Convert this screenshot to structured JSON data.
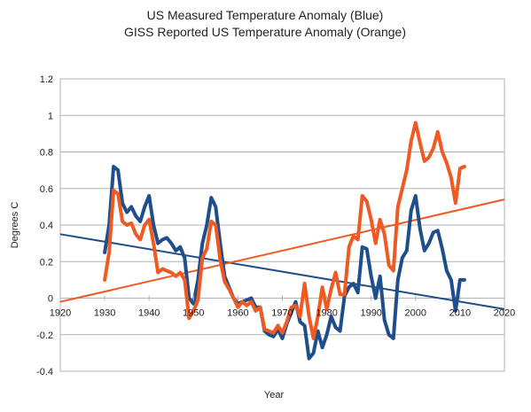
{
  "chart_data": {
    "type": "line",
    "title_lines": [
      "US Measured Temperature Anomaly (Blue)",
      "GISS Reported US Temperature Anomaly (Orange)"
    ],
    "xlabel": "Year",
    "ylabel": "Degrees C",
    "xlim": [
      1920,
      2020
    ],
    "ylim": [
      -0.4,
      1.2
    ],
    "x_ticks": [
      1920,
      1930,
      1940,
      1950,
      1960,
      1970,
      1980,
      1990,
      2000,
      2010,
      2020
    ],
    "y_ticks": [
      -0.4,
      -0.2,
      0,
      0.2,
      0.4,
      0.6,
      0.8,
      1,
      1.2
    ],
    "grid": "horizontal",
    "series": [
      {
        "color": "#1f4e8c",
        "points": [
          [
            1930,
            0.25
          ],
          [
            1931,
            0.4
          ],
          [
            1932,
            0.72
          ],
          [
            1933,
            0.7
          ],
          [
            1934,
            0.52
          ],
          [
            1935,
            0.47
          ],
          [
            1936,
            0.5
          ],
          [
            1937,
            0.45
          ],
          [
            1938,
            0.42
          ],
          [
            1939,
            0.5
          ],
          [
            1940,
            0.56
          ],
          [
            1941,
            0.4
          ],
          [
            1942,
            0.3
          ],
          [
            1943,
            0.32
          ],
          [
            1944,
            0.33
          ],
          [
            1945,
            0.3
          ],
          [
            1946,
            0.26
          ],
          [
            1947,
            0.28
          ],
          [
            1948,
            0.22
          ],
          [
            1949,
            0.0
          ],
          [
            1950,
            -0.03
          ],
          [
            1951,
            0.1
          ],
          [
            1952,
            0.3
          ],
          [
            1953,
            0.4
          ],
          [
            1954,
            0.55
          ],
          [
            1955,
            0.5
          ],
          [
            1956,
            0.3
          ],
          [
            1957,
            0.12
          ],
          [
            1958,
            0.06
          ],
          [
            1959,
            0.0
          ],
          [
            1960,
            -0.03
          ],
          [
            1961,
            -0.02
          ],
          [
            1962,
            -0.01
          ],
          [
            1963,
            0.0
          ],
          [
            1964,
            -0.05
          ],
          [
            1965,
            -0.05
          ],
          [
            1966,
            -0.18
          ],
          [
            1967,
            -0.2
          ],
          [
            1968,
            -0.21
          ],
          [
            1969,
            -0.17
          ],
          [
            1970,
            -0.22
          ],
          [
            1971,
            -0.14
          ],
          [
            1972,
            -0.08
          ],
          [
            1973,
            -0.02
          ],
          [
            1974,
            -0.13
          ],
          [
            1975,
            -0.15
          ],
          [
            1976,
            -0.33
          ],
          [
            1977,
            -0.3
          ],
          [
            1978,
            -0.18
          ],
          [
            1979,
            -0.27
          ],
          [
            1980,
            -0.2
          ],
          [
            1981,
            -0.1
          ],
          [
            1982,
            -0.16
          ],
          [
            1983,
            -0.18
          ],
          [
            1984,
            0.01
          ],
          [
            1985,
            0.06
          ],
          [
            1986,
            0.08
          ],
          [
            1987,
            0.03
          ],
          [
            1988,
            0.28
          ],
          [
            1989,
            0.27
          ],
          [
            1990,
            0.12
          ],
          [
            1991,
            0.0
          ],
          [
            1992,
            0.12
          ],
          [
            1993,
            -0.12
          ],
          [
            1994,
            -0.2
          ],
          [
            1995,
            -0.22
          ],
          [
            1996,
            0.1
          ],
          [
            1997,
            0.22
          ],
          [
            1998,
            0.26
          ],
          [
            1999,
            0.48
          ],
          [
            2000,
            0.56
          ],
          [
            2001,
            0.38
          ],
          [
            2002,
            0.26
          ],
          [
            2003,
            0.3
          ],
          [
            2004,
            0.36
          ],
          [
            2005,
            0.37
          ],
          [
            2006,
            0.27
          ],
          [
            2007,
            0.15
          ],
          [
            2008,
            0.1
          ],
          [
            2009,
            -0.07
          ],
          [
            2010,
            0.1
          ],
          [
            2011,
            0.1
          ]
        ]
      },
      {
        "color": "#f05a22",
        "points": [
          [
            1930,
            0.1
          ],
          [
            1931,
            0.25
          ],
          [
            1932,
            0.59
          ],
          [
            1933,
            0.57
          ],
          [
            1934,
            0.42
          ],
          [
            1935,
            0.4
          ],
          [
            1936,
            0.41
          ],
          [
            1937,
            0.35
          ],
          [
            1938,
            0.32
          ],
          [
            1939,
            0.4
          ],
          [
            1940,
            0.43
          ],
          [
            1941,
            0.3
          ],
          [
            1942,
            0.14
          ],
          [
            1943,
            0.16
          ],
          [
            1944,
            0.15
          ],
          [
            1945,
            0.14
          ],
          [
            1946,
            0.12
          ],
          [
            1947,
            0.14
          ],
          [
            1948,
            0.1
          ],
          [
            1949,
            -0.11
          ],
          [
            1950,
            -0.07
          ],
          [
            1951,
            -0.01
          ],
          [
            1952,
            0.22
          ],
          [
            1953,
            0.27
          ],
          [
            1954,
            0.42
          ],
          [
            1955,
            0.4
          ],
          [
            1956,
            0.21
          ],
          [
            1957,
            0.09
          ],
          [
            1958,
            0.05
          ],
          [
            1959,
            0.0
          ],
          [
            1960,
            -0.05
          ],
          [
            1961,
            -0.02
          ],
          [
            1962,
            -0.04
          ],
          [
            1963,
            -0.02
          ],
          [
            1964,
            -0.07
          ],
          [
            1965,
            -0.05
          ],
          [
            1966,
            -0.17
          ],
          [
            1967,
            -0.18
          ],
          [
            1968,
            -0.19
          ],
          [
            1969,
            -0.15
          ],
          [
            1970,
            -0.19
          ],
          [
            1971,
            -0.13
          ],
          [
            1972,
            -0.05
          ],
          [
            1973,
            -0.04
          ],
          [
            1974,
            -0.1
          ],
          [
            1975,
            0.08
          ],
          [
            1976,
            -0.1
          ],
          [
            1977,
            -0.22
          ],
          [
            1978,
            -0.1
          ],
          [
            1979,
            0.06
          ],
          [
            1980,
            -0.06
          ],
          [
            1981,
            0.05
          ],
          [
            1982,
            0.14
          ],
          [
            1983,
            0.02
          ],
          [
            1984,
            0.02
          ],
          [
            1985,
            0.28
          ],
          [
            1986,
            0.34
          ],
          [
            1987,
            0.32
          ],
          [
            1988,
            0.56
          ],
          [
            1989,
            0.53
          ],
          [
            1990,
            0.43
          ],
          [
            1991,
            0.3
          ],
          [
            1992,
            0.43
          ],
          [
            1993,
            0.35
          ],
          [
            1994,
            0.18
          ],
          [
            1995,
            0.15
          ],
          [
            1996,
            0.5
          ],
          [
            1997,
            0.6
          ],
          [
            1998,
            0.7
          ],
          [
            1999,
            0.86
          ],
          [
            2000,
            0.96
          ],
          [
            2001,
            0.85
          ],
          [
            2002,
            0.75
          ],
          [
            2003,
            0.77
          ],
          [
            2004,
            0.82
          ],
          [
            2005,
            0.91
          ],
          [
            2006,
            0.8
          ],
          [
            2007,
            0.74
          ],
          [
            2008,
            0.66
          ],
          [
            2009,
            0.52
          ],
          [
            2010,
            0.71
          ],
          [
            2011,
            0.72
          ]
        ]
      }
    ],
    "trendlines": [
      {
        "color": "#1f4e8c",
        "from": [
          1920,
          0.35
        ],
        "to": [
          2020,
          -0.06
        ]
      },
      {
        "color": "#f05a22",
        "from": [
          1920,
          -0.02
        ],
        "to": [
          2020,
          0.54
        ]
      }
    ]
  }
}
